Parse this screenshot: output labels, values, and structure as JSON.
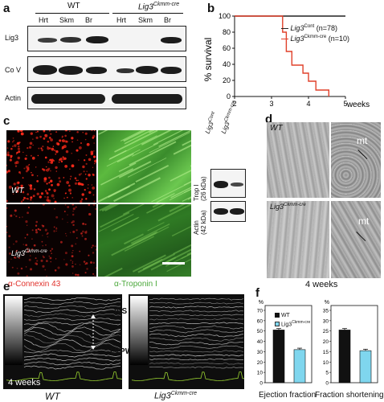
{
  "panel_labels": {
    "a": "a",
    "b": "b",
    "c": "c",
    "d": "d",
    "e": "e",
    "f": "f"
  },
  "panel_a": {
    "group_wt": "WT",
    "group_lig3": "Lig3",
    "group_lig3_sup": "Ckmm-cre",
    "lanes": [
      "Hrt",
      "Skm",
      "Br",
      "Hrt",
      "Skm",
      "Br"
    ],
    "rows": [
      "Lig3",
      "Co V",
      "Actin"
    ]
  },
  "panel_b": {
    "chart_data": {
      "type": "line",
      "ylabel": "% survival",
      "xlabel": "weeks",
      "xlim": [
        2,
        5
      ],
      "ylim": [
        0,
        100
      ],
      "x_ticks": [
        2,
        3,
        4,
        5
      ],
      "y_ticks": [
        0,
        20,
        40,
        60,
        80,
        100
      ],
      "series": [
        {
          "name": "Lig3Cont (n=78)",
          "color": "#222222",
          "points": [
            [
              2,
              100
            ],
            [
              5,
              100
            ]
          ]
        },
        {
          "name": "Lig3Ckmm-cre (n=10)",
          "color": "#e0402a",
          "points": [
            [
              2,
              100
            ],
            [
              3.3,
              100
            ],
            [
              3.3,
              80
            ],
            [
              3.4,
              80
            ],
            [
              3.4,
              56
            ],
            [
              3.55,
              56
            ],
            [
              3.55,
              39
            ],
            [
              3.85,
              39
            ],
            [
              3.85,
              29
            ],
            [
              4.0,
              29
            ],
            [
              4.0,
              19
            ],
            [
              4.2,
              19
            ],
            [
              4.2,
              8
            ],
            [
              4.55,
              8
            ],
            [
              4.55,
              0
            ]
          ]
        }
      ]
    },
    "legend_cont": "Lig3",
    "legend_cont_sup": "Cont",
    "legend_cont_n": " (n=78)",
    "legend_ckmm": "Lig3",
    "legend_ckmm_sup": "Ckmm-cre",
    "legend_ckmm_n": " (n=10)",
    "xlabel": "weeks",
    "ylabel": "% survival"
  },
  "panel_c": {
    "wt": "WT",
    "lig3": "Lig3",
    "lig3_sup": "Ckmm-cre",
    "connexin": "α-Connexin 43",
    "troponin": "α-Troponin I",
    "blot_cont": "Lig3",
    "blot_cont_sup": "Cont",
    "blot_ckmm": "Lig3",
    "blot_ckmm_sup": "Ckmm-cre",
    "trop_label": "Trop I",
    "trop_kda": "(26 kDa)",
    "actin_label": "Actin",
    "actin_kda": "(42 kDa)"
  },
  "panel_d": {
    "wt": "WT",
    "lig3": "Lig3",
    "lig3_sup": "Ckmm-cre",
    "mt": "mt",
    "weeks": "4 weeks"
  },
  "panel_e": {
    "ivs": "IVS",
    "lvpw": "LVPW",
    "weeks": "4 weeks",
    "wt": "WT",
    "lig3": "Lig3",
    "lig3_sup": "Ckmm-cre"
  },
  "panel_f": {
    "chart_data": [
      {
        "type": "bar",
        "xlabel": "Ejection fraction",
        "ylabel": "%",
        "ylim": [
          0,
          70
        ],
        "y_ticks": [
          0,
          10,
          20,
          30,
          40,
          50,
          60,
          70
        ],
        "series": [
          {
            "name": "WT",
            "color": "#111111",
            "values": [
              51
            ]
          },
          {
            "name": "Lig3Ckmm-cre",
            "color": "#7fd6ee",
            "values": [
              32
            ]
          }
        ]
      },
      {
        "type": "bar",
        "xlabel": "Fraction shortening",
        "ylabel": "%",
        "ylim": [
          0,
          35
        ],
        "y_ticks": [
          0,
          5,
          10,
          15,
          20,
          25,
          30,
          35
        ],
        "series": [
          {
            "name": "WT",
            "color": "#111111",
            "values": [
              25.5
            ]
          },
          {
            "name": "Lig3Ckmm-cre",
            "color": "#7fd6ee",
            "values": [
              15.5
            ]
          }
        ]
      }
    ],
    "legend_wt": "WT",
    "legend_lig3": "Lig3",
    "legend_lig3_sup": "Ckmm-cre",
    "ef_label": "Ejection fraction",
    "fs_label": "Fraction shortening",
    "pct": "%"
  }
}
